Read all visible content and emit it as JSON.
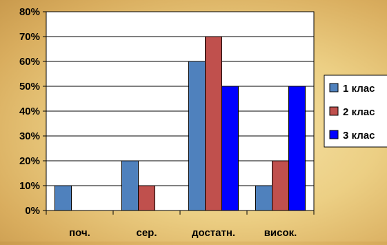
{
  "chart_data": {
    "type": "bar",
    "categories": [
      "поч.",
      "сер.",
      "достатн.",
      "висок."
    ],
    "series": [
      {
        "name": "1 клас",
        "values": [
          10,
          20,
          60,
          10
        ],
        "color": "#4f81bd"
      },
      {
        "name": "2 клас",
        "values": [
          0,
          10,
          70,
          20
        ],
        "color": "#c0504d"
      },
      {
        "name": "3 клас",
        "values": [
          0,
          0,
          50,
          50
        ],
        "color": "#0000ff"
      }
    ],
    "y_ticks": [
      "0%",
      "10%",
      "20%",
      "30%",
      "40%",
      "50%",
      "60%",
      "70%",
      "80%"
    ],
    "ylim": [
      0,
      80
    ],
    "y_unit": "%",
    "grid": true,
    "legend_position": "right",
    "title": "",
    "xlabel": "",
    "ylabel": ""
  }
}
